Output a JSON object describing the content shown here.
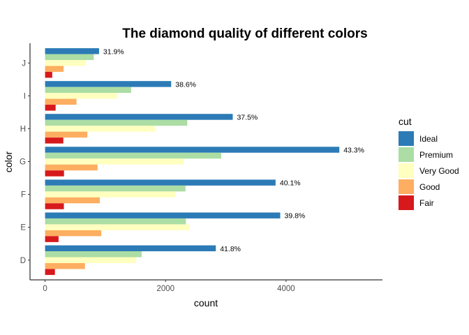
{
  "chart_data": {
    "type": "bar",
    "orientation": "horizontal",
    "title": "The diamond quality of different colors",
    "xlabel": "count",
    "ylabel": "color",
    "categories": [
      "D",
      "E",
      "F",
      "G",
      "H",
      "I",
      "J"
    ],
    "xlim": [
      -250,
      5600
    ],
    "xticks": [
      0,
      2000,
      4000
    ],
    "xtick_labels": [
      "0",
      "2000",
      "4000"
    ],
    "grid": false,
    "legend_title": "cut",
    "legend_position": "right",
    "series": [
      {
        "name": "Ideal",
        "color": "#2c7bb6",
        "values": [
          2834,
          3903,
          3826,
          4884,
          3115,
          2093,
          896
        ]
      },
      {
        "name": "Premium",
        "color": "#abdda4",
        "values": [
          1603,
          2337,
          2331,
          2924,
          2360,
          1428,
          808
        ]
      },
      {
        "name": "Very Good",
        "color": "#ffffbf",
        "values": [
          1513,
          2400,
          2164,
          2299,
          1824,
          1204,
          678
        ]
      },
      {
        "name": "Good",
        "color": "#fdae61",
        "values": [
          662,
          933,
          909,
          871,
          702,
          522,
          307
        ]
      },
      {
        "name": "Fair",
        "color": "#d7191c",
        "values": [
          163,
          224,
          312,
          314,
          303,
          175,
          119
        ]
      }
    ],
    "data_labels": [
      "41.8%",
      "39.8%",
      "40.1%",
      "43.3%",
      "37.5%",
      "38.6%",
      "31.9%"
    ]
  }
}
